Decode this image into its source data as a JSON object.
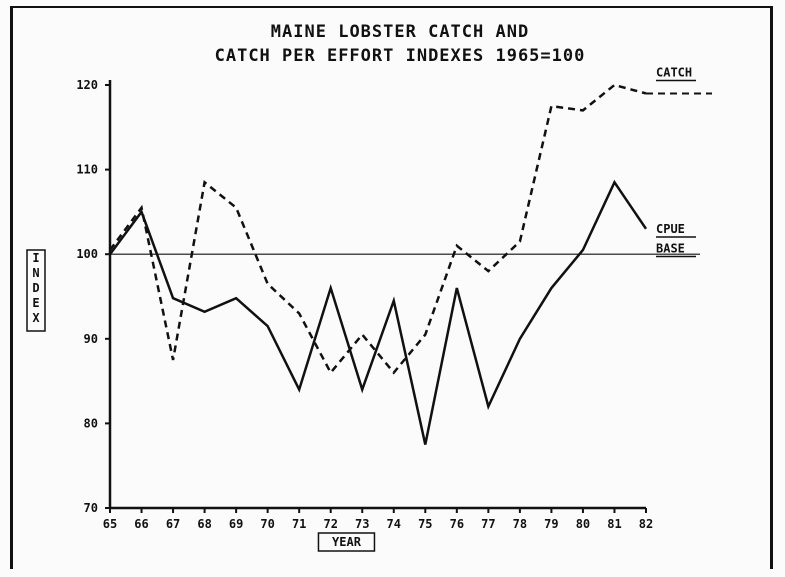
{
  "chart_data": {
    "type": "line",
    "title": "MAINE LOBSTER CATCH AND",
    "subtitle": "CATCH PER EFFORT INDEXES 1965=100",
    "xlabel": "YEAR",
    "ylabel": "INDEX",
    "ylim": [
      70,
      120
    ],
    "yticks": [
      70,
      80,
      90,
      100,
      110,
      120
    ],
    "categories": [
      "65",
      "66",
      "67",
      "68",
      "69",
      "70",
      "71",
      "72",
      "73",
      "74",
      "75",
      "76",
      "77",
      "78",
      "79",
      "80",
      "81",
      "82"
    ],
    "series": [
      {
        "name": "CATCH",
        "style": "dashed",
        "values": [
          100.5,
          105.5,
          87.5,
          108.5,
          105.5,
          96.5,
          93,
          86,
          90.5,
          86,
          90.5,
          101,
          98,
          101.5,
          117.5,
          117,
          120,
          119
        ]
      },
      {
        "name": "CPUE",
        "style": "solid",
        "values": [
          100,
          105,
          94.8,
          93.2,
          94.8,
          91.5,
          84,
          96,
          84,
          94.5,
          77.5,
          96,
          82,
          90,
          96,
          100.5,
          108.5,
          103
        ]
      },
      {
        "name": "BASE",
        "style": "thin",
        "values": [
          100,
          100,
          100,
          100,
          100,
          100,
          100,
          100,
          100,
          100,
          100,
          100,
          100,
          100,
          100,
          100,
          100,
          100
        ]
      }
    ],
    "grid": false,
    "legend": "right, labels at line ends",
    "colors": {
      "ink": "#111111",
      "background": "#fbfbfb"
    }
  }
}
